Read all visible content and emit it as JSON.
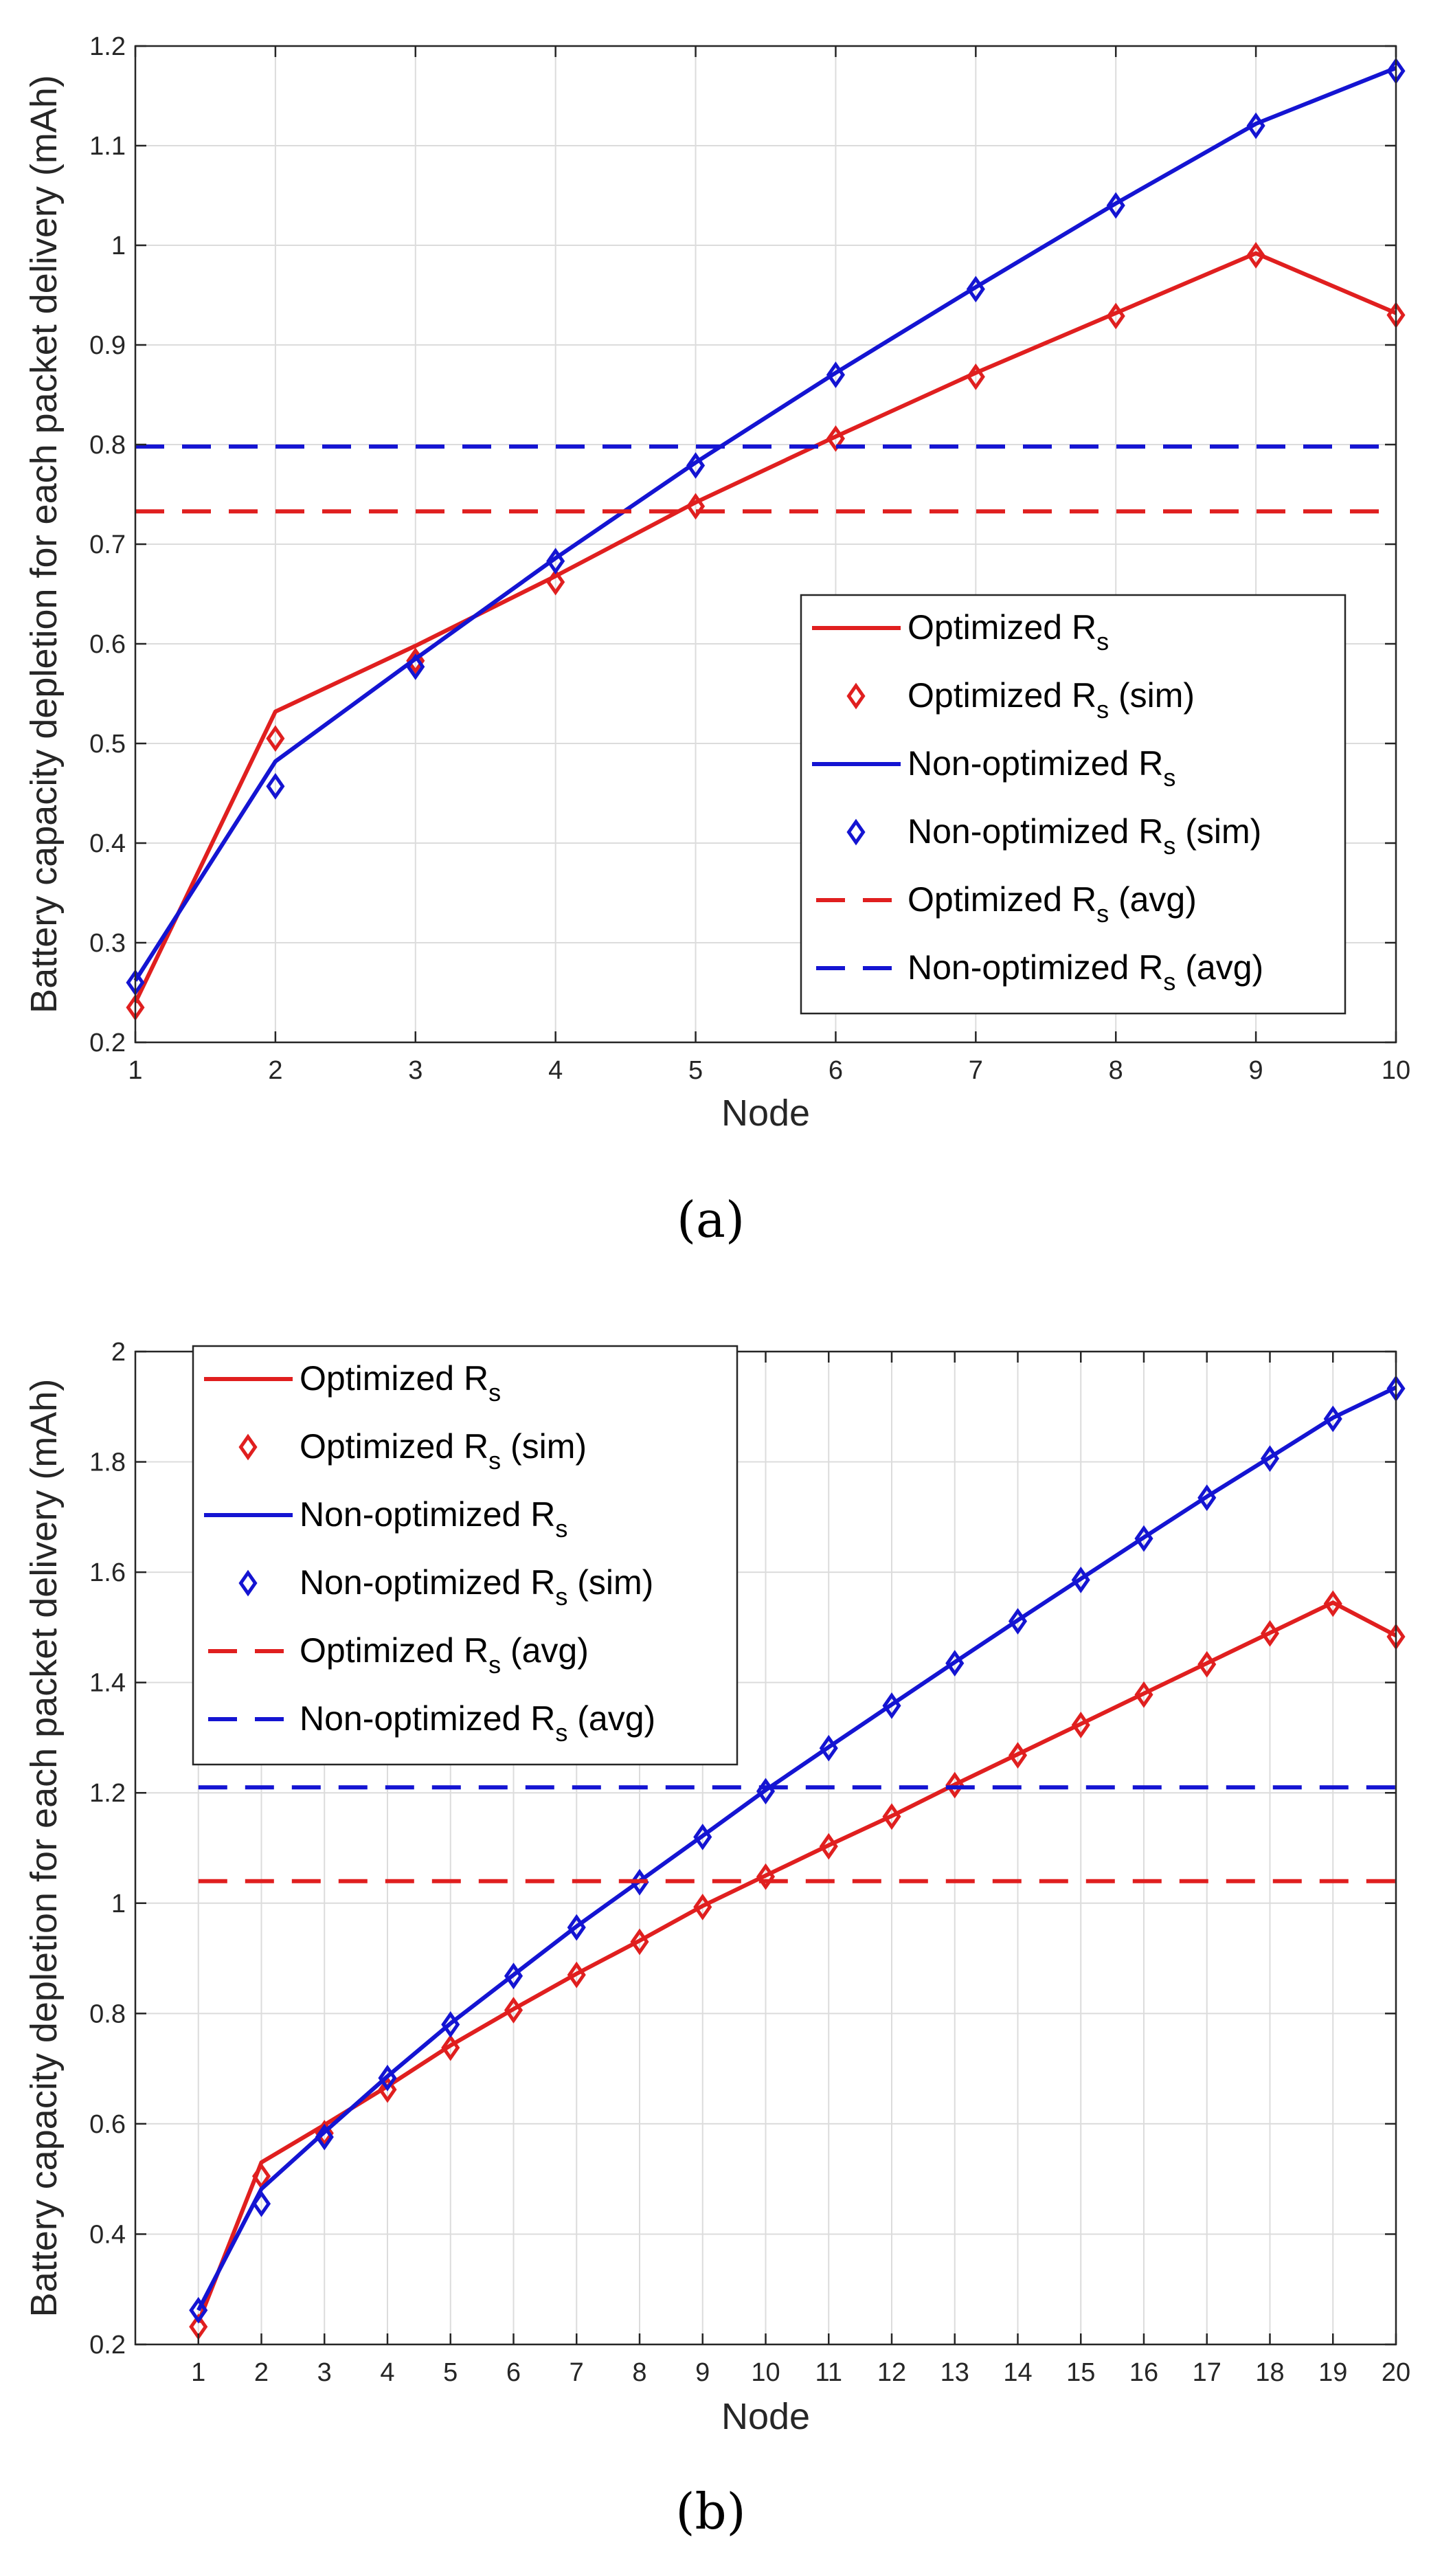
{
  "colors": {
    "optimized": "#e01f1f",
    "non_optimized": "#1414d2",
    "grid": "#dcdcdc",
    "axis": "#262626"
  },
  "chart_data": [
    {
      "type": "line",
      "panel_label": "(a)",
      "xlabel": "Node",
      "ylabel": "Battery capacity depletion for each packet delivery (mAh)",
      "xlim": [
        1,
        10
      ],
      "ylim": [
        0.2,
        1.2
      ],
      "x_ticks": [
        1,
        2,
        3,
        4,
        5,
        6,
        7,
        8,
        9,
        10
      ],
      "y_ticks": [
        0.2,
        0.3,
        0.4,
        0.5,
        0.6,
        0.7,
        0.8,
        0.9,
        1,
        1.1,
        1.2
      ],
      "y_tick_labels": [
        "0.2",
        "0.3",
        "0.4",
        "0.5",
        "0.6",
        "0.7",
        "0.8",
        "0.9",
        "1",
        "1.1",
        "1.2"
      ],
      "grid": true,
      "legend_position": "bottom-right",
      "x": [
        1,
        2,
        3,
        4,
        5,
        6,
        7,
        8,
        9,
        10
      ],
      "series": [
        {
          "name": "Optimized R",
          "name_sub": "s",
          "style": "line",
          "color": "optimized",
          "values": [
            0.24,
            0.532,
            0.598,
            0.668,
            0.742,
            0.808,
            0.872,
            0.932,
            0.992,
            0.932
          ]
        },
        {
          "name": "Optimized R",
          "name_sub": "s",
          "name_suffix": " (sim)",
          "style": "marker",
          "color": "optimized",
          "values": [
            0.235,
            0.505,
            0.583,
            0.662,
            0.738,
            0.806,
            0.868,
            0.929,
            0.99,
            0.93
          ]
        },
        {
          "name": "Non-optimized R",
          "name_sub": "s",
          "style": "line",
          "color": "non_optimized",
          "values": [
            0.262,
            0.482,
            0.585,
            0.686,
            0.782,
            0.872,
            0.958,
            1.042,
            1.122,
            1.178
          ]
        },
        {
          "name": "Non-optimized R",
          "name_sub": "s",
          "name_suffix": " (sim)",
          "style": "marker",
          "color": "non_optimized",
          "values": [
            0.26,
            0.457,
            0.577,
            0.683,
            0.779,
            0.87,
            0.956,
            1.04,
            1.12,
            1.175
          ]
        },
        {
          "name": "Optimized R",
          "name_sub": "s",
          "name_suffix": " (avg)",
          "style": "dashed",
          "color": "optimized",
          "values": [
            0.733,
            0.733,
            0.733,
            0.733,
            0.733,
            0.733,
            0.733,
            0.733,
            0.733,
            0.733
          ]
        },
        {
          "name": "Non-optimized R",
          "name_sub": "s",
          "name_suffix": " (avg)",
          "style": "dashed",
          "color": "non_optimized",
          "values": [
            0.798,
            0.798,
            0.798,
            0.798,
            0.798,
            0.798,
            0.798,
            0.798,
            0.798,
            0.798
          ]
        }
      ]
    },
    {
      "type": "line",
      "panel_label": "(b)",
      "xlabel": "Node",
      "ylabel": "Battery capacity depletion for each packet delivery (mAh)",
      "xlim": [
        0,
        20
      ],
      "ylim": [
        0.2,
        2
      ],
      "x_ticks": [
        1,
        2,
        3,
        4,
        5,
        6,
        7,
        8,
        9,
        10,
        11,
        12,
        13,
        14,
        15,
        16,
        17,
        18,
        19,
        20
      ],
      "y_ticks": [
        0.2,
        0.4,
        0.6,
        0.8,
        1,
        1.2,
        1.4,
        1.6,
        1.8,
        2
      ],
      "y_tick_labels": [
        "0.2",
        "0.4",
        "0.6",
        "0.8",
        "1",
        "1.2",
        "1.4",
        "1.6",
        "1.8",
        "2"
      ],
      "grid": true,
      "legend_position": "top-left",
      "x": [
        1,
        2,
        3,
        4,
        5,
        6,
        7,
        8,
        9,
        10,
        11,
        12,
        13,
        14,
        15,
        16,
        17,
        18,
        19,
        20
      ],
      "series": [
        {
          "name": "Optimized R",
          "name_sub": "s",
          "style": "line",
          "color": "optimized",
          "values": [
            0.24,
            0.53,
            0.598,
            0.668,
            0.742,
            0.808,
            0.872,
            0.932,
            0.995,
            1.05,
            1.105,
            1.158,
            1.215,
            1.27,
            1.325,
            1.38,
            1.435,
            1.49,
            1.545,
            1.485
          ]
        },
        {
          "name": "Optimized R",
          "name_sub": "s",
          "name_suffix": " (sim)",
          "style": "marker",
          "color": "optimized",
          "values": [
            0.232,
            0.505,
            0.583,
            0.662,
            0.738,
            0.806,
            0.87,
            0.93,
            0.993,
            1.048,
            1.103,
            1.157,
            1.214,
            1.268,
            1.323,
            1.378,
            1.433,
            1.489,
            1.543,
            1.483
          ]
        },
        {
          "name": "Non-optimized R",
          "name_sub": "s",
          "style": "line",
          "color": "non_optimized",
          "values": [
            0.262,
            0.482,
            0.585,
            0.686,
            0.782,
            0.87,
            0.958,
            1.04,
            1.122,
            1.205,
            1.283,
            1.36,
            1.437,
            1.513,
            1.588,
            1.663,
            1.737,
            1.808,
            1.88,
            1.935
          ]
        },
        {
          "name": "Non-optimized R",
          "name_sub": "s",
          "name_suffix": " (sim)",
          "style": "marker",
          "color": "non_optimized",
          "values": [
            0.262,
            0.455,
            0.576,
            0.683,
            0.78,
            0.868,
            0.956,
            1.038,
            1.12,
            1.203,
            1.281,
            1.358,
            1.435,
            1.511,
            1.586,
            1.661,
            1.735,
            1.806,
            1.878,
            1.933
          ]
        },
        {
          "name": "Optimized R",
          "name_sub": "s",
          "name_suffix": " (avg)",
          "style": "dashed",
          "color": "optimized",
          "values": [
            1.04,
            1.04,
            1.04,
            1.04,
            1.04,
            1.04,
            1.04,
            1.04,
            1.04,
            1.04,
            1.04,
            1.04,
            1.04,
            1.04,
            1.04,
            1.04,
            1.04,
            1.04,
            1.04,
            1.04
          ]
        },
        {
          "name": "Non-optimized R",
          "name_sub": "s",
          "name_suffix": " (avg)",
          "style": "dashed",
          "color": "non_optimized",
          "values": [
            1.21,
            1.21,
            1.21,
            1.21,
            1.21,
            1.21,
            1.21,
            1.21,
            1.21,
            1.21,
            1.21,
            1.21,
            1.21,
            1.21,
            1.21,
            1.21,
            1.21,
            1.21,
            1.21,
            1.21
          ]
        }
      ]
    }
  ]
}
